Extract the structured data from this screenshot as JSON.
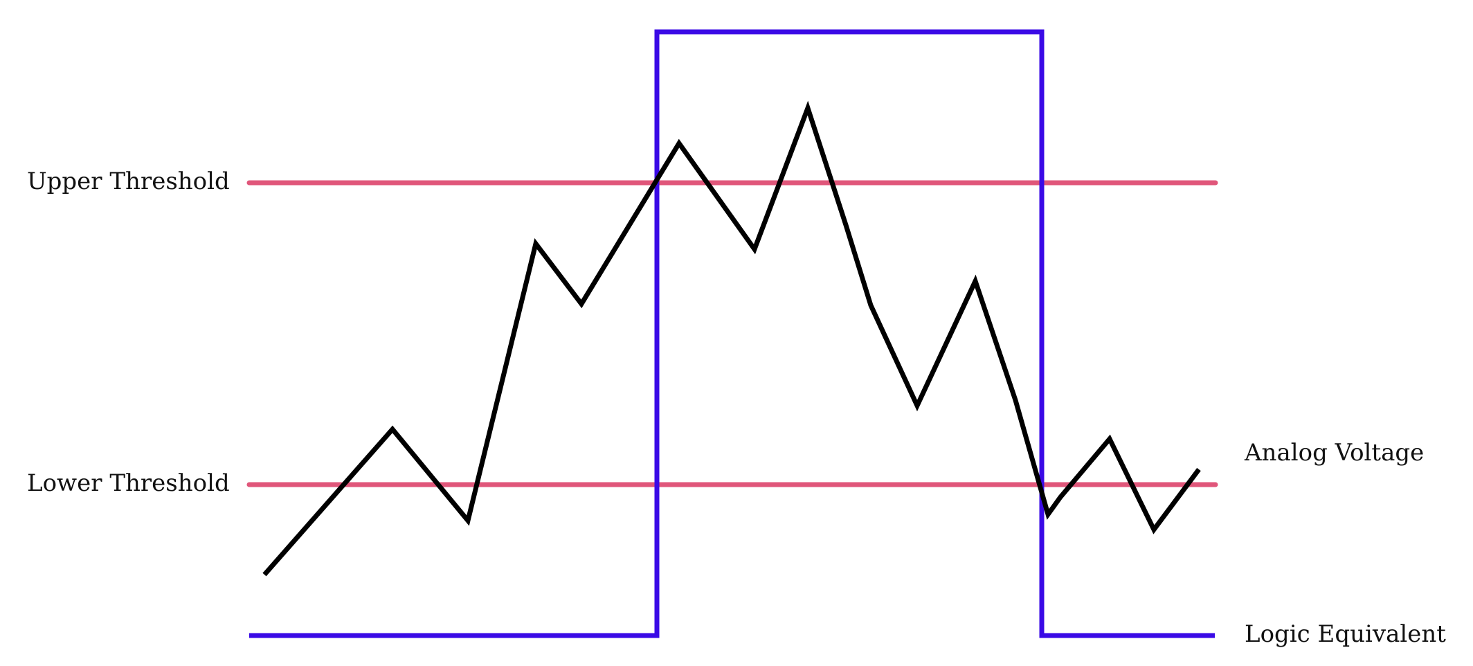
{
  "labels": {
    "upper_threshold": "Upper Threshold",
    "lower_threshold": "Lower Threshold",
    "analog_voltage": "Analog Voltage",
    "logic_equivalent": "Logic Equivalent"
  },
  "colors": {
    "threshold": "#E0567A",
    "logic": "#3A0AE6",
    "analog": "#000000",
    "background": "#FFFFFF"
  },
  "logic_signal": {
    "levels": [
      "low",
      "high",
      "low"
    ]
  }
}
